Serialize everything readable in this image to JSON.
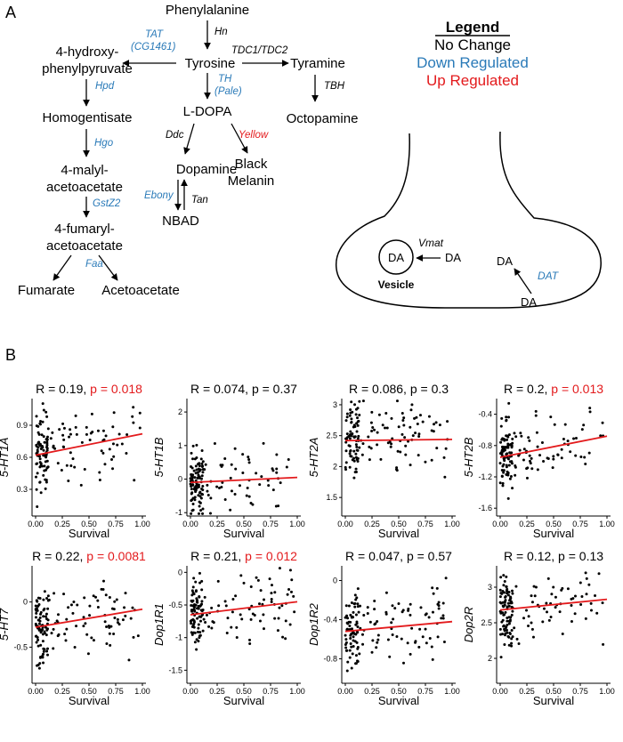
{
  "panel_a": {
    "label": "A",
    "pathway": {
      "phenylalanine": "Phenylalanine",
      "hn": "Hn",
      "tyrosine": "Tyrosine",
      "tat_1": "TAT",
      "tat_2": "(CG1461)",
      "tdc": "TDC1/TDC2",
      "tyramine": "Tyramine",
      "tbh": "TBH",
      "octopamine": "Octopamine",
      "hpp_1": "4-hydroxy-",
      "hpp_2": "phenylpyruvate",
      "hpd": "Hpd",
      "homogentisate": "Homogentisate",
      "hgo": "Hgo",
      "malyl_1": "4-malyl-",
      "malyl_2": "acetoacetate",
      "gstz2": "GstZ2",
      "fumaryl_1": "4-fumaryl-",
      "fumaryl_2": "acetoacetate",
      "faa": "Faa",
      "fumarate": "Fumarate",
      "acetoacetate": "Acetoacetate",
      "th_1": "TH",
      "th_2": "(Pale)",
      "ldopa": "L-DOPA",
      "ddc": "Ddc",
      "yellow": "Yellow",
      "dopamine": "Dopamine",
      "black_1": "Black",
      "black_2": "Melanin",
      "ebony": "Ebony",
      "tan": "Tan",
      "nbad": "NBAD"
    },
    "legend": {
      "title": "Legend",
      "no_change": "No Change",
      "down": "Down Regulated",
      "up": "Up Regulated"
    },
    "synapse": {
      "vmat": "Vmat",
      "da": "DA",
      "vesicle": "Vesicle",
      "dat": "DAT"
    },
    "colors": {
      "none": "#000000",
      "down": "#2a7ab8",
      "up": "#e31a1c"
    }
  },
  "panel_b": {
    "label": "B",
    "xlabel": "Survival",
    "fit_color": "#e31a1c"
  },
  "chart_data": [
    {
      "type": "scatter",
      "ylabel": "5-HT1A",
      "r_text": "R = 0.19, ",
      "p_text": "p = 0.018",
      "p_significant": true,
      "xlim": [
        0,
        1
      ],
      "xticks": [
        0,
        0.25,
        0.5,
        0.75,
        1
      ],
      "ylim": [
        0.05,
        1.15
      ],
      "yticks": [
        0.3,
        0.6,
        0.9
      ],
      "fit": [
        0.62,
        0.82
      ]
    },
    {
      "type": "scatter",
      "ylabel": "5-HT1B",
      "r_text": "R = 0.074, ",
      "p_text": "p = 0.37",
      "p_significant": false,
      "xlim": [
        0,
        1
      ],
      "xticks": [
        0,
        0.25,
        0.5,
        0.75,
        1
      ],
      "ylim": [
        -1.1,
        2.4
      ],
      "yticks": [
        -1,
        0,
        1,
        2
      ],
      "fit": [
        -0.1,
        0.05
      ]
    },
    {
      "type": "scatter",
      "ylabel": "5-HT2A",
      "r_text": "R = 0.086, ",
      "p_text": "p = 0.3",
      "p_significant": false,
      "xlim": [
        0,
        1
      ],
      "xticks": [
        0,
        0.25,
        0.5,
        0.75,
        1
      ],
      "ylim": [
        1.2,
        3.1
      ],
      "yticks": [
        1.5,
        2,
        2.5,
        3
      ],
      "fit": [
        2.42,
        2.44
      ]
    },
    {
      "type": "scatter",
      "ylabel": "5-HT2B",
      "r_text": "R = 0.2, ",
      "p_text": "p = 0.013",
      "p_significant": true,
      "xlim": [
        0,
        1
      ],
      "xticks": [
        0,
        0.25,
        0.5,
        0.75,
        1
      ],
      "ylim": [
        -1.7,
        -0.2
      ],
      "yticks": [
        -1.6,
        -1.2,
        -0.8,
        -0.4
      ],
      "fit": [
        -0.95,
        -0.68
      ]
    },
    {
      "type": "scatter",
      "ylabel": "5-HT7",
      "r_text": "R = 0.22, ",
      "p_text": "p = 0.0081",
      "p_significant": true,
      "xlim": [
        0,
        1
      ],
      "xticks": [
        0,
        0.25,
        0.5,
        0.75,
        1
      ],
      "ylim": [
        -0.9,
        0.4
      ],
      "yticks": [
        -0.5,
        0
      ],
      "fit": [
        -0.28,
        -0.08
      ]
    },
    {
      "type": "scatter",
      "ylabel": "Dop1R1",
      "r_text": "R = 0.21, ",
      "p_text": "p = 0.012",
      "p_significant": true,
      "xlim": [
        0,
        1
      ],
      "xticks": [
        0,
        0.25,
        0.5,
        0.75,
        1
      ],
      "ylim": [
        -1.7,
        0.1
      ],
      "yticks": [
        -1.5,
        -1,
        -0.5,
        0
      ],
      "fit": [
        -0.65,
        -0.45
      ]
    },
    {
      "type": "scatter",
      "ylabel": "Dop1R2",
      "r_text": "R = 0.047, ",
      "p_text": "p = 0.57",
      "p_significant": false,
      "xlim": [
        0,
        1
      ],
      "xticks": [
        0,
        0.25,
        0.5,
        0.75,
        1
      ],
      "ylim": [
        -1.05,
        0.15
      ],
      "yticks": [
        -0.8,
        -0.4,
        0
      ],
      "fit": [
        -0.52,
        -0.42
      ]
    },
    {
      "type": "scatter",
      "ylabel": "Dop2R",
      "r_text": "R = 0.12, ",
      "p_text": "p = 0.13",
      "p_significant": false,
      "xlim": [
        0,
        1
      ],
      "xticks": [
        0,
        0.25,
        0.5,
        0.75,
        1
      ],
      "ylim": [
        1.65,
        3.3
      ],
      "yticks": [
        2,
        2.5,
        3
      ],
      "fit": [
        2.68,
        2.83
      ]
    }
  ]
}
